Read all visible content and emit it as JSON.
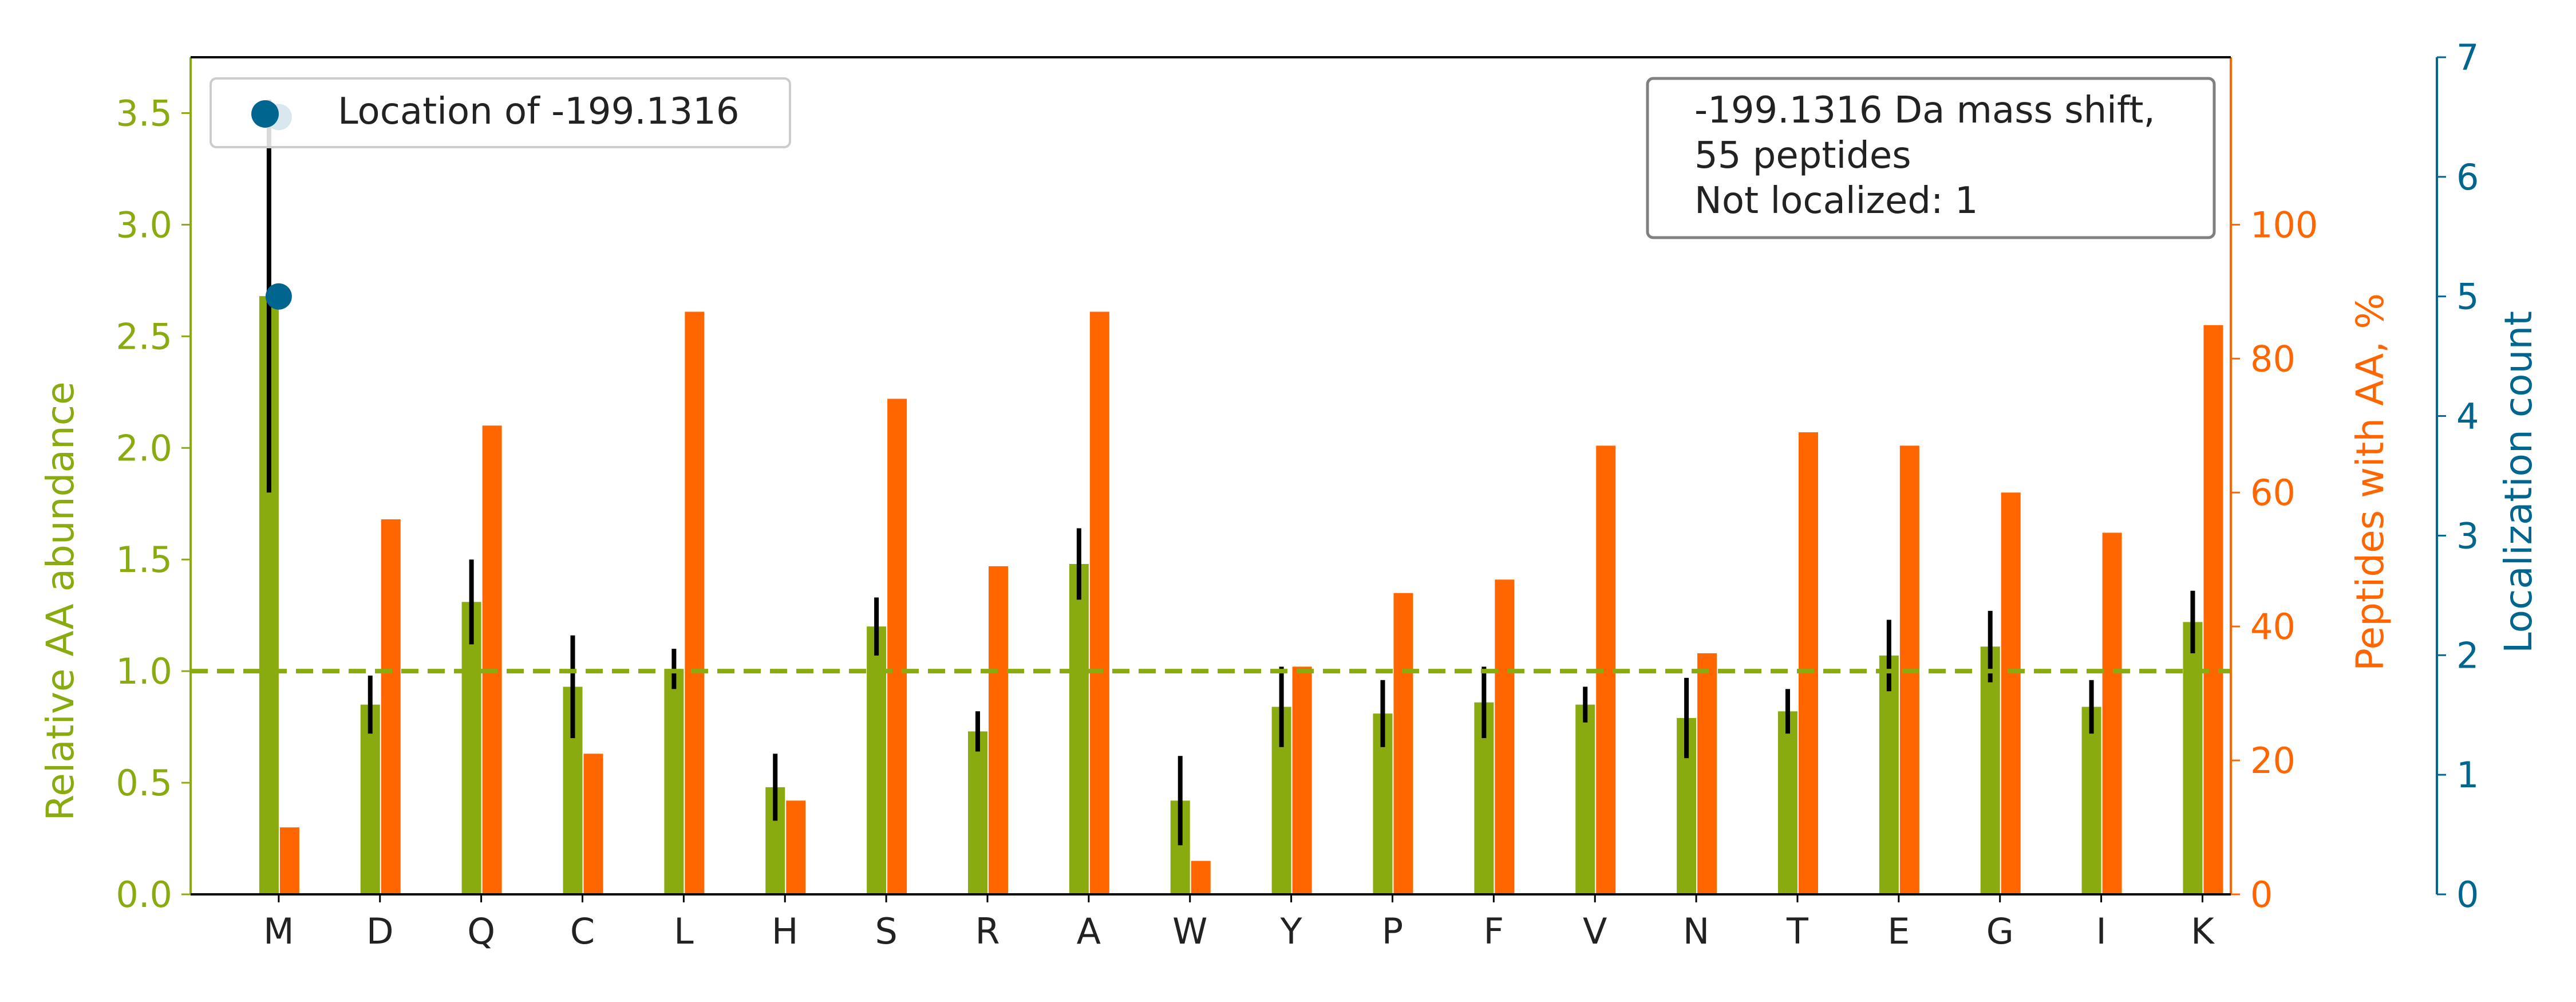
{
  "chart_data": {
    "type": "bar",
    "categories": [
      "M",
      "D",
      "Q",
      "C",
      "L",
      "H",
      "S",
      "R",
      "A",
      "W",
      "Y",
      "P",
      "F",
      "V",
      "N",
      "T",
      "E",
      "G",
      "I",
      "K"
    ],
    "axes": {
      "left": {
        "label": "Relative AA abundance",
        "ylim": [
          0,
          3.75
        ],
        "ticks": [
          "0.0",
          "0.5",
          "1.0",
          "1.5",
          "2.0",
          "2.5",
          "3.0",
          "3.5"
        ],
        "tick_values": [
          0,
          0.5,
          1.0,
          1.5,
          2.0,
          2.5,
          3.0,
          3.5
        ],
        "color": "#8aab0f"
      },
      "right": {
        "label": "Peptides with AA, %",
        "ylim": [
          0,
          125
        ],
        "ticks": [
          "0",
          "20",
          "40",
          "60",
          "80",
          "100"
        ],
        "tick_values": [
          0,
          20,
          40,
          60,
          80,
          100
        ],
        "color": "#ff6600"
      },
      "far_right": {
        "label": "Localization count",
        "ylim": [
          0,
          7
        ],
        "ticks": [
          "0",
          "1",
          "2",
          "3",
          "4",
          "5",
          "6",
          "7"
        ],
        "tick_values": [
          0,
          1,
          2,
          3,
          4,
          5,
          6,
          7
        ],
        "color": "#00668f"
      }
    },
    "series": [
      {
        "axis": "left",
        "color": "#8aab0f",
        "values": [
          2.68,
          0.85,
          1.31,
          0.93,
          1.01,
          0.48,
          1.2,
          0.73,
          1.48,
          0.42,
          0.84,
          0.81,
          0.86,
          0.85,
          0.79,
          0.82,
          1.07,
          1.11,
          0.84,
          1.22
        ],
        "error": [
          0.88,
          0.13,
          0.19,
          0.23,
          0.09,
          0.15,
          0.13,
          0.09,
          0.16,
          0.2,
          0.18,
          0.15,
          0.16,
          0.08,
          0.18,
          0.1,
          0.16,
          0.16,
          0.12,
          0.14
        ]
      },
      {
        "axis": "right",
        "color": "#ff6600",
        "values": [
          10,
          56,
          70,
          21,
          87,
          14,
          74,
          49,
          87,
          5,
          34,
          45,
          47,
          67,
          36,
          69,
          67,
          60,
          54,
          85
        ]
      },
      {
        "axis": "far_right",
        "color": "#00668f",
        "type": "scatter",
        "x": [
          "M",
          "M"
        ],
        "values": [
          6.5,
          5.0
        ]
      }
    ],
    "reference_line": {
      "axis": "left",
      "y": 1.0,
      "color": "#8aab0f",
      "style": "dashed"
    },
    "legend": {
      "location": "top-left",
      "label": "Location of -199.1316"
    },
    "annotation": {
      "location": "top-right",
      "lines": [
        "-199.1316 Da mass shift,",
        "55 peptides",
        "Not localized: 1"
      ]
    }
  }
}
